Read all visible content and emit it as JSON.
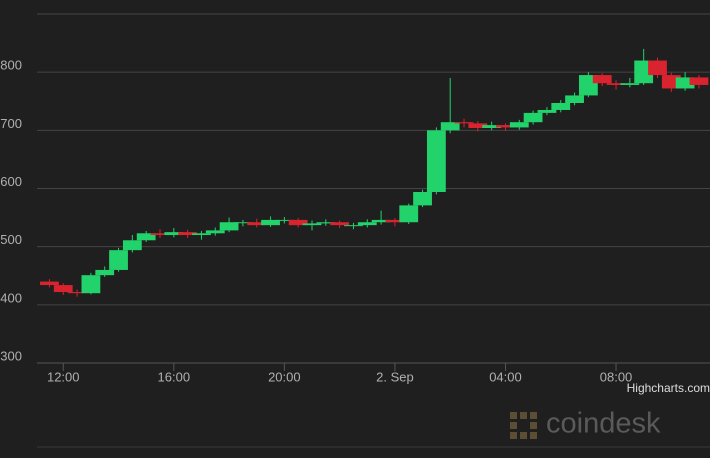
{
  "chart_data": {
    "type": "candlestick",
    "x": [
      11.5,
      12,
      12.5,
      13,
      13.5,
      14,
      14.5,
      15,
      15.5,
      16,
      16.5,
      17,
      17.5,
      18,
      18.5,
      19,
      19.5,
      20,
      20.5,
      21,
      21.5,
      22,
      22.5,
      23,
      23.5,
      24,
      24.5,
      25,
      25.5,
      26,
      26.5,
      27,
      27.5,
      28,
      28.5,
      29,
      29.5,
      30,
      30.5,
      31,
      31.5,
      32,
      32.5,
      33,
      33.5,
      34,
      34.5,
      35
    ],
    "open": [
      440,
      434,
      422,
      420,
      451,
      460,
      494,
      511,
      523,
      520,
      525,
      520,
      523,
      528,
      542,
      542,
      537,
      546,
      546,
      537,
      540,
      542,
      537,
      537,
      542,
      546,
      542,
      571,
      594,
      700,
      714,
      712,
      704,
      709,
      705,
      714,
      730,
      735,
      747,
      760,
      795,
      781,
      778,
      781,
      820,
      795,
      772,
      791
    ],
    "high": [
      444,
      437,
      426,
      455,
      466,
      498,
      520,
      527,
      530,
      532,
      529,
      527,
      533,
      550,
      546,
      548,
      552,
      551,
      549,
      545,
      547,
      545,
      541,
      547,
      562,
      549,
      574,
      598,
      705,
      790,
      720,
      716,
      715,
      712,
      718,
      734,
      740,
      752,
      765,
      800,
      798,
      786,
      790,
      840,
      825,
      799,
      800,
      795
    ],
    "low": [
      430,
      417,
      414,
      418,
      448,
      457,
      490,
      508,
      515,
      516,
      515,
      512,
      519,
      525,
      535,
      533,
      534,
      540,
      533,
      528,
      536,
      532,
      530,
      533,
      538,
      535,
      539,
      568,
      590,
      695,
      705,
      698,
      700,
      699,
      701,
      710,
      726,
      731,
      743,
      757,
      776,
      770,
      774,
      778,
      790,
      766,
      768,
      772
    ],
    "close": [
      434,
      422,
      420,
      451,
      460,
      494,
      511,
      523,
      520,
      525,
      520,
      523,
      528,
      542,
      542,
      537,
      546,
      546,
      537,
      540,
      542,
      537,
      537,
      542,
      546,
      542,
      571,
      594,
      700,
      714,
      712,
      704,
      709,
      705,
      714,
      730,
      735,
      747,
      760,
      795,
      781,
      778,
      781,
      820,
      795,
      772,
      791,
      778
    ],
    "up_color": "#22d36b",
    "down_color": "#d9232f",
    "xlim": [
      11.05,
      35.4
    ],
    "xticks": [
      {
        "value": 12,
        "label": "12:00"
      },
      {
        "value": 16,
        "label": "16:00"
      },
      {
        "value": 20,
        "label": "20:00"
      },
      {
        "value": 24,
        "label": "2. Sep"
      },
      {
        "value": 28,
        "label": "04:00"
      },
      {
        "value": 32,
        "label": "08:00"
      }
    ],
    "ylim": [
      300,
      900
    ],
    "yticks": [
      300,
      400,
      500,
      600,
      700,
      800
    ],
    "grid": true,
    "credits": "Highcharts.com",
    "watermark": "coindesk"
  }
}
